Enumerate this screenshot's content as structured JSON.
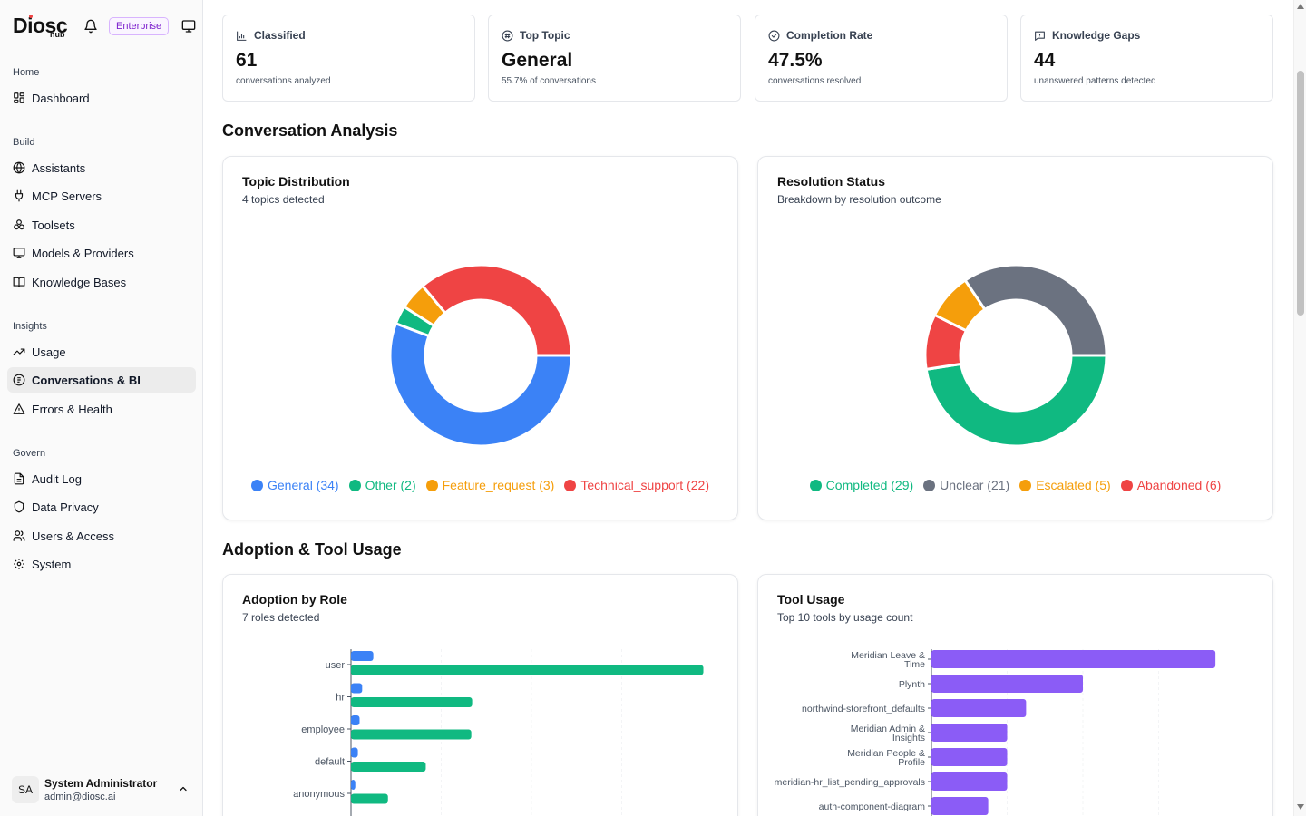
{
  "brand": {
    "name": "Diosc",
    "sub": "hub",
    "badge": "Enterprise"
  },
  "sidebar": {
    "sections": [
      {
        "label": "Home",
        "items": [
          {
            "label": "Dashboard",
            "icon": "dashboard-icon"
          }
        ]
      },
      {
        "label": "Build",
        "items": [
          {
            "label": "Assistants",
            "icon": "globe-icon"
          },
          {
            "label": "MCP Servers",
            "icon": "plug-icon"
          },
          {
            "label": "Toolsets",
            "icon": "toolsets-icon"
          },
          {
            "label": "Models & Providers",
            "icon": "monitor-icon"
          },
          {
            "label": "Knowledge Bases",
            "icon": "book-icon"
          }
        ]
      },
      {
        "label": "Insights",
        "items": [
          {
            "label": "Usage",
            "icon": "trend-icon"
          },
          {
            "label": "Conversations & BI",
            "icon": "conversations-icon",
            "active": true
          },
          {
            "label": "Errors & Health",
            "icon": "warning-icon"
          }
        ]
      },
      {
        "label": "Govern",
        "items": [
          {
            "label": "Audit Log",
            "icon": "document-icon"
          },
          {
            "label": "Data Privacy",
            "icon": "shield-icon"
          },
          {
            "label": "Users & Access",
            "icon": "users-icon"
          },
          {
            "label": "System",
            "icon": "gear-icon"
          }
        ]
      }
    ],
    "user": {
      "initials": "SA",
      "name": "System Administrator",
      "email": "admin@diosc.ai"
    }
  },
  "stats": [
    {
      "label": "Classified",
      "value": "61",
      "sub": "conversations analyzed",
      "icon": "bar-chart-icon"
    },
    {
      "label": "Top Topic",
      "value": "General",
      "sub": "55.7% of conversations",
      "icon": "hash-icon"
    },
    {
      "label": "Completion Rate",
      "value": "47.5%",
      "sub": "conversations resolved",
      "icon": "check-circle-icon"
    },
    {
      "label": "Knowledge Gaps",
      "value": "44",
      "sub": "unanswered patterns detected",
      "icon": "message-icon"
    }
  ],
  "sections": {
    "analysis": "Conversation Analysis",
    "adoption": "Adoption & Tool Usage"
  },
  "panels": {
    "topic": {
      "title": "Topic Distribution",
      "subtitle": "4 topics detected"
    },
    "resolution": {
      "title": "Resolution Status",
      "subtitle": "Breakdown by resolution outcome"
    },
    "adoption": {
      "title": "Adoption by Role",
      "subtitle": "7 roles detected"
    },
    "tools": {
      "title": "Tool Usage",
      "subtitle": "Top 10 tools by usage count"
    }
  },
  "chart_data": [
    {
      "type": "pie",
      "title": "Topic Distribution",
      "categories": [
        "General",
        "Other",
        "Feature_request",
        "Technical_support"
      ],
      "values": [
        34,
        2,
        3,
        22
      ],
      "legend": [
        "General (34)",
        "Other (2)",
        "Feature_request (3)",
        "Technical_support (22)"
      ],
      "colors": [
        "#3b82f6",
        "#10b981",
        "#f59e0b",
        "#ef4444"
      ]
    },
    {
      "type": "pie",
      "title": "Resolution Status",
      "categories": [
        "Completed",
        "Unclear",
        "Escalated",
        "Abandoned"
      ],
      "values": [
        29,
        21,
        5,
        6
      ],
      "legend": [
        "Completed (29)",
        "Unclear (21)",
        "Escalated (5)",
        "Abandoned (6)"
      ],
      "colors": [
        "#10b981",
        "#6b7280",
        "#f59e0b",
        "#ef4444"
      ],
      "draw_order": [
        0,
        3,
        2,
        1
      ]
    },
    {
      "type": "bar",
      "title": "Adoption by Role",
      "categories": [
        "user",
        "hr",
        "employee",
        "default",
        "anonymous"
      ],
      "series": [
        {
          "values": [
            26,
            13,
            10,
            8,
            5
          ],
          "color": "#3b82f6"
        },
        {
          "values": [
            410,
            141,
            140,
            87,
            43
          ],
          "color": "#10b981"
        }
      ],
      "xlim": [
        0,
        420
      ]
    },
    {
      "type": "bar",
      "title": "Tool Usage",
      "categories": [
        "Meridian Leave & Time",
        "Plynth",
        "northwind-storefront_defaults",
        "Meridian Admin & Insights",
        "Meridian People & Profile",
        "meridian-hr_list_pending_approvals",
        "auth-component-diagram"
      ],
      "values": [
        30,
        16,
        10,
        8,
        8,
        8,
        6
      ],
      "xlim": [
        0,
        32
      ],
      "color": "#8b5cf6"
    }
  ]
}
